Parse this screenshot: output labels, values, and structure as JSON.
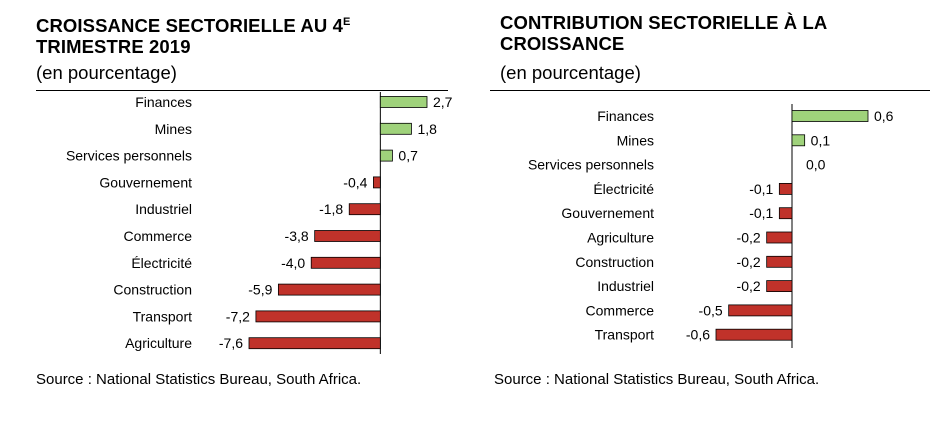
{
  "left_panel": {
    "title_main": "CROISSANCE SECTORIELLE AU 4",
    "title_sup": "E",
    "title_line2": "TRIMESTRE 2019",
    "subtitle": "(en pourcentage)",
    "source": "Source : National Statistics Bureau, South Africa."
  },
  "right_panel": {
    "title_line1": "CONTRIBUTION SECTORIELLE À LA",
    "title_line2": "CROISSANCE",
    "subtitle": "(en pourcentage)",
    "source": "Source :  National Statistics Bureau, South Africa."
  },
  "colors": {
    "positive": "#9fd27b",
    "negative": "#c0322a",
    "axis": "#000000"
  },
  "chart_data": [
    {
      "type": "bar",
      "orientation": "horizontal",
      "title": "CROISSANCE SECTORIELLE AU 4E TRIMESTRE 2019",
      "subtitle": "(en pourcentage)",
      "categories": [
        "Finances",
        "Mines",
        "Services personnels",
        "Gouvernement",
        "Industriel",
        "Commerce",
        "Électricité",
        "Construction",
        "Transport",
        "Agriculture"
      ],
      "values": [
        2.7,
        1.8,
        0.7,
        -0.4,
        -1.8,
        -3.8,
        -4.0,
        -5.9,
        -7.2,
        -7.6
      ],
      "value_labels": [
        "2,7",
        "1,8",
        "0,7",
        "-0,4",
        "-1,8",
        "-3,8",
        "-4,0",
        "-5,9",
        "-7,2",
        "-7,6"
      ],
      "xlim": [
        -7.6,
        2.7
      ],
      "grid": false,
      "legend": "none"
    },
    {
      "type": "bar",
      "orientation": "horizontal",
      "title": "CONTRIBUTION SECTORIELLE À LA CROISSANCE",
      "subtitle": "(en pourcentage)",
      "categories": [
        "Finances",
        "Mines",
        "Services personnels",
        "Électricité",
        "Gouvernement",
        "Agriculture",
        "Construction",
        "Industriel",
        "Commerce",
        "Transport"
      ],
      "values": [
        0.6,
        0.1,
        0.0,
        -0.1,
        -0.1,
        -0.2,
        -0.2,
        -0.2,
        -0.5,
        -0.6
      ],
      "value_labels": [
        "0,6",
        "0,1",
        "0,0",
        "-0,1",
        "-0,1",
        "-0,2",
        "-0,2",
        "-0,2",
        "-0,5",
        "-0,6"
      ],
      "xlim": [
        -0.6,
        0.6
      ],
      "grid": false,
      "legend": "none"
    }
  ]
}
